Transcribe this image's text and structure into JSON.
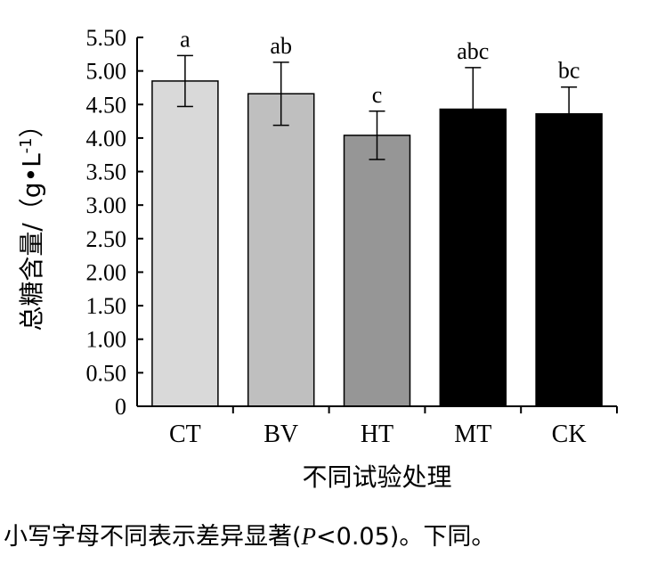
{
  "chart_data": {
    "type": "bar",
    "categories": [
      "CT",
      "BV",
      "HT",
      "MT",
      "CK"
    ],
    "values": [
      4.85,
      4.66,
      4.04,
      4.43,
      4.36
    ],
    "errors": [
      0.38,
      0.47,
      0.36,
      0.62,
      0.4
    ],
    "significance_letters": [
      "a",
      "ab",
      "c",
      "abc",
      "bc"
    ],
    "bar_colors": [
      "#d9d9d9",
      "#bfbfbf",
      "#969696",
      "#000000",
      "#000000"
    ],
    "xlabel": "不同试验处理",
    "ylabel": "总糖含量/（g•L-1）",
    "ylabel_main": "总糖含量/（g•L",
    "ylabel_sup": "-1",
    "ylabel_close": "）",
    "ylim": [
      0,
      5.5
    ],
    "yticks": [
      "0",
      "0.50",
      "1.00",
      "1.50",
      "2.00",
      "2.50",
      "3.00",
      "3.50",
      "4.00",
      "4.50",
      "5.00",
      "5.50"
    ],
    "grid": false
  },
  "footnote": {
    "text": "小写字母不同表示差异显著(P<0.05)。下同。",
    "before": "小写字母不同表示差异显著(",
    "italic": "P",
    "after": "<0.05)。下同。"
  }
}
